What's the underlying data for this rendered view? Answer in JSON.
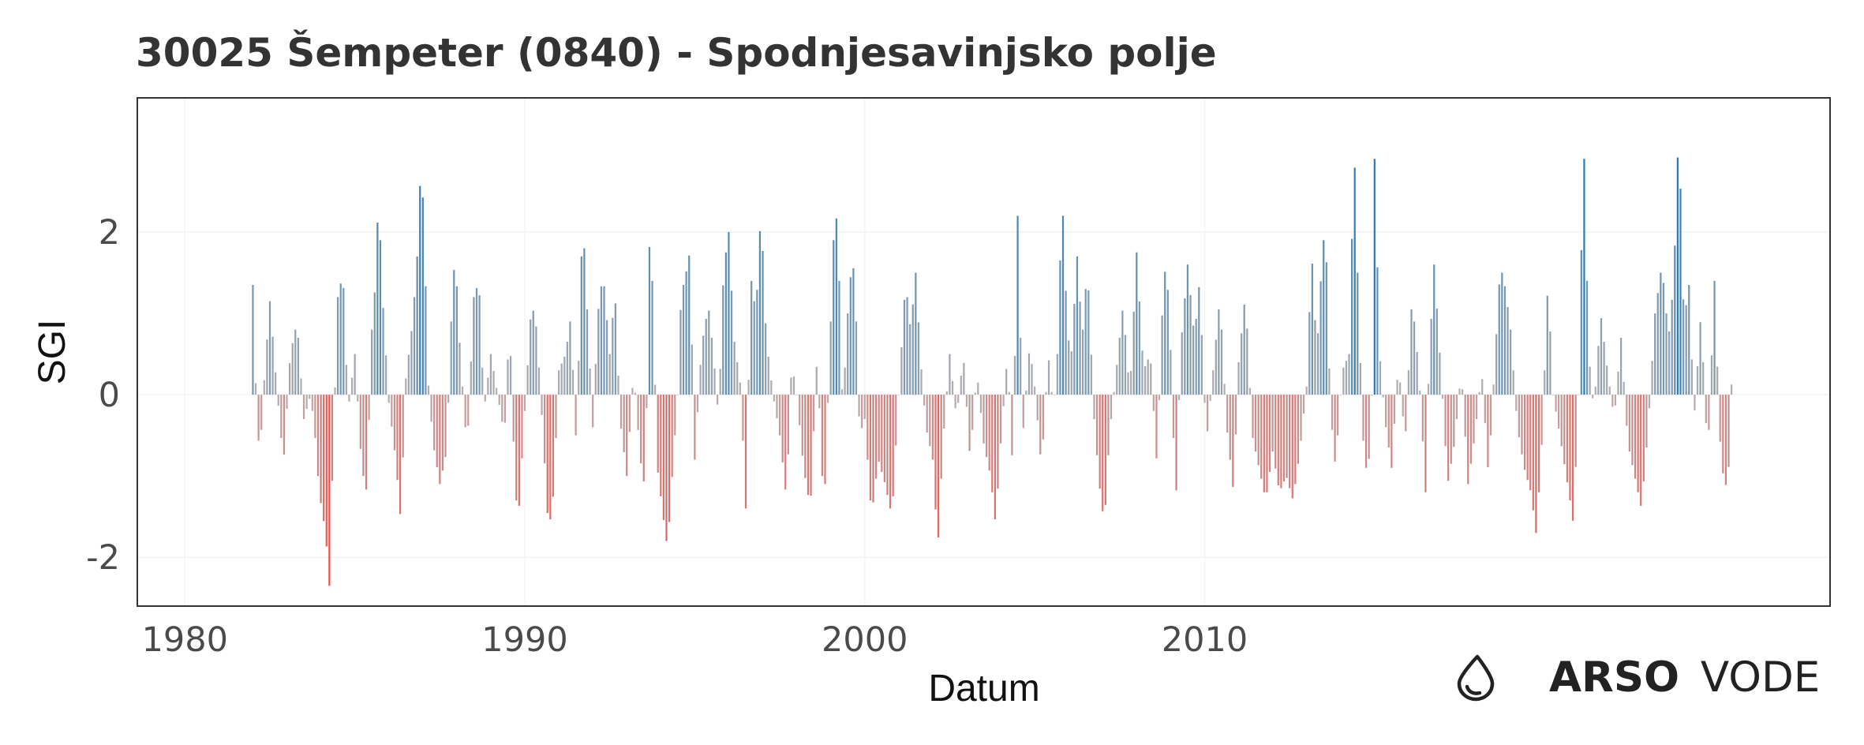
{
  "chart_data": {
    "type": "bar",
    "title": "30025 Šempeter (0840) - Spodnjesavinjsko polje",
    "xlabel": "Datum",
    "ylabel": "SGI",
    "xlim": [
      1978.6,
      2028.4
    ],
    "ylim": [
      -2.6,
      3.65
    ],
    "x_ticks": [
      {
        "value": 1980,
        "label": "1980"
      },
      {
        "value": 1990,
        "label": "1990"
      },
      {
        "value": 2000,
        "label": "2000"
      },
      {
        "value": 2010,
        "label": "2010"
      }
    ],
    "y_ticks": [
      {
        "value": 2,
        "label": "2"
      },
      {
        "value": 0,
        "label": "0"
      },
      {
        "value": -2,
        "label": "-2"
      }
    ],
    "grid": true,
    "colors": {
      "positive": "#1f77b4",
      "negative": "#e8504a",
      "neutral": "#b8b0b0"
    },
    "series": [
      {
        "name": "",
        "keypoints": [
          [
            1982.0,
            1.35
          ],
          [
            1982.1,
            -0.1
          ],
          [
            1982.2,
            -0.8
          ],
          [
            1982.35,
            0.3
          ],
          [
            1982.5,
            1.15
          ],
          [
            1982.7,
            0.1
          ],
          [
            1982.9,
            -0.85
          ],
          [
            1983.1,
            0.5
          ],
          [
            1983.3,
            0.9
          ],
          [
            1983.5,
            -0.3
          ],
          [
            1983.7,
            0.0
          ],
          [
            1983.85,
            -0.6
          ],
          [
            1983.95,
            -1.2
          ],
          [
            1984.1,
            -1.6
          ],
          [
            1984.2,
            -2.0
          ],
          [
            1984.25,
            -2.35
          ],
          [
            1984.35,
            -0.8
          ],
          [
            1984.5,
            1.2
          ],
          [
            1984.65,
            1.5
          ],
          [
            1984.8,
            -0.2
          ],
          [
            1985.0,
            0.5
          ],
          [
            1985.2,
            -0.9
          ],
          [
            1985.35,
            -1.2
          ],
          [
            1985.5,
            0.8
          ],
          [
            1985.6,
            1.35
          ],
          [
            1985.7,
            2.5
          ],
          [
            1985.8,
            1.3
          ],
          [
            1986.0,
            -0.1
          ],
          [
            1986.2,
            -0.8
          ],
          [
            1986.35,
            -1.55
          ],
          [
            1986.5,
            0.2
          ],
          [
            1986.7,
            0.9
          ],
          [
            1986.85,
            1.8
          ],
          [
            1986.95,
            2.95
          ],
          [
            1987.05,
            1.9
          ],
          [
            1987.15,
            0.2
          ],
          [
            1987.3,
            -0.6
          ],
          [
            1987.5,
            -1.1
          ],
          [
            1987.7,
            -0.7
          ],
          [
            1987.85,
            1.1
          ],
          [
            1987.95,
            1.75
          ],
          [
            1988.1,
            0.5
          ],
          [
            1988.3,
            -0.7
          ],
          [
            1988.5,
            1.2
          ],
          [
            1988.65,
            1.4
          ],
          [
            1988.8,
            -0.2
          ],
          [
            1989.0,
            0.5
          ],
          [
            1989.2,
            0.0
          ],
          [
            1989.4,
            -0.5
          ],
          [
            1989.55,
            0.9
          ],
          [
            1989.7,
            -1.0
          ],
          [
            1989.8,
            -1.6
          ],
          [
            1990.0,
            -0.2
          ],
          [
            1990.2,
            1.15
          ],
          [
            1990.35,
            0.8
          ],
          [
            1990.55,
            -0.6
          ],
          [
            1990.7,
            -1.7
          ],
          [
            1990.85,
            -1.2
          ],
          [
            1991.0,
            0.3
          ],
          [
            1991.2,
            0.5
          ],
          [
            1991.35,
            0.95
          ],
          [
            1991.5,
            -0.5
          ],
          [
            1991.6,
            0.6
          ],
          [
            1991.7,
            2.25
          ],
          [
            1991.85,
            0.9
          ],
          [
            1992.0,
            -0.4
          ],
          [
            1992.15,
            1.0
          ],
          [
            1992.3,
            1.5
          ],
          [
            1992.5,
            0.5
          ],
          [
            1992.65,
            1.3
          ],
          [
            1992.8,
            -0.3
          ],
          [
            1993.0,
            -1.0
          ],
          [
            1993.2,
            0.3
          ],
          [
            1993.4,
            -0.8
          ],
          [
            1993.55,
            -1.2
          ],
          [
            1993.65,
            1.9
          ],
          [
            1993.75,
            1.4
          ],
          [
            1993.9,
            -0.9
          ],
          [
            1994.1,
            -1.6
          ],
          [
            1994.2,
            -1.9
          ],
          [
            1994.35,
            -0.9
          ],
          [
            1994.5,
            0.0
          ],
          [
            1994.6,
            1.25
          ],
          [
            1994.7,
            1.4
          ],
          [
            1994.85,
            1.75
          ],
          [
            1995.0,
            -0.8
          ],
          [
            1995.2,
            0.6
          ],
          [
            1995.4,
            1.1
          ],
          [
            1995.55,
            0.5
          ],
          [
            1995.7,
            -0.3
          ],
          [
            1995.85,
            1.55
          ],
          [
            1996.0,
            2.0
          ],
          [
            1996.15,
            0.7
          ],
          [
            1996.35,
            0.1
          ],
          [
            1996.5,
            -1.4
          ],
          [
            1996.65,
            1.45
          ],
          [
            1996.8,
            1.0
          ],
          [
            1996.95,
            2.3
          ],
          [
            1997.1,
            0.7
          ],
          [
            1997.3,
            0.0
          ],
          [
            1997.5,
            -0.5
          ],
          [
            1997.7,
            -1.3
          ],
          [
            1997.85,
            0.4
          ],
          [
            1998.0,
            0.0
          ],
          [
            1998.2,
            -0.9
          ],
          [
            1998.4,
            -1.4
          ],
          [
            1998.6,
            0.5
          ],
          [
            1998.8,
            -1.5
          ],
          [
            1998.95,
            0.3
          ],
          [
            1999.1,
            2.1
          ],
          [
            1999.2,
            2.2
          ],
          [
            1999.35,
            -0.2
          ],
          [
            1999.55,
            1.4
          ],
          [
            1999.7,
            1.6
          ],
          [
            1999.85,
            -0.5
          ],
          [
            2000.0,
            -0.3
          ],
          [
            2000.2,
            -1.5
          ],
          [
            2000.4,
            -0.8
          ],
          [
            2000.6,
            -1.1
          ],
          [
            2000.8,
            -1.5
          ],
          [
            2001.0,
            0.0
          ],
          [
            2001.2,
            1.4
          ],
          [
            2001.35,
            0.8
          ],
          [
            2001.5,
            1.5
          ],
          [
            2001.65,
            0.4
          ],
          [
            2001.8,
            -0.4
          ],
          [
            2002.0,
            -0.8
          ],
          [
            2002.15,
            -1.9
          ],
          [
            2002.3,
            -0.6
          ],
          [
            2002.5,
            0.5
          ],
          [
            2002.7,
            -0.3
          ],
          [
            2002.9,
            0.5
          ],
          [
            2003.1,
            -0.8
          ],
          [
            2003.3,
            0.3
          ],
          [
            2003.5,
            -0.6
          ],
          [
            2003.7,
            -1.0
          ],
          [
            2003.85,
            -1.6
          ],
          [
            2004.0,
            -0.6
          ],
          [
            2004.2,
            0.5
          ],
          [
            2004.35,
            -0.9
          ],
          [
            2004.5,
            2.2
          ],
          [
            2004.65,
            -0.5
          ],
          [
            2004.85,
            0.6
          ],
          [
            2005.0,
            0.1
          ],
          [
            2005.2,
            -0.9
          ],
          [
            2005.4,
            0.5
          ],
          [
            2005.55,
            -0.2
          ],
          [
            2005.7,
            0.7
          ],
          [
            2005.8,
            2.6
          ],
          [
            2005.9,
            1.4
          ],
          [
            2006.05,
            0.3
          ],
          [
            2006.25,
            1.7
          ],
          [
            2006.4,
            0.7
          ],
          [
            2006.55,
            1.6
          ],
          [
            2006.75,
            -0.3
          ],
          [
            2006.9,
            -1.1
          ],
          [
            2007.05,
            -1.6
          ],
          [
            2007.2,
            -0.5
          ],
          [
            2007.4,
            0.3
          ],
          [
            2007.6,
            1.1
          ],
          [
            2007.8,
            0.0
          ],
          [
            2008.0,
            1.75
          ],
          [
            2008.2,
            0.3
          ],
          [
            2008.4,
            0.5
          ],
          [
            2008.6,
            -0.9
          ],
          [
            2008.8,
            1.6
          ],
          [
            2008.95,
            1.2
          ],
          [
            2009.15,
            -1.4
          ],
          [
            2009.3,
            0.6
          ],
          [
            2009.5,
            1.6
          ],
          [
            2009.7,
            0.7
          ],
          [
            2009.85,
            1.4
          ],
          [
            2010.05,
            -0.6
          ],
          [
            2010.25,
            0.3
          ],
          [
            2010.45,
            1.2
          ],
          [
            2010.65,
            -0.4
          ],
          [
            2010.85,
            -1.2
          ],
          [
            2011.0,
            0.4
          ],
          [
            2011.2,
            1.25
          ],
          [
            2011.4,
            -0.5
          ],
          [
            2011.6,
            -0.9
          ],
          [
            2011.8,
            -1.3
          ],
          [
            2012.0,
            -0.7
          ],
          [
            2012.2,
            -1.2
          ],
          [
            2012.4,
            -1.0
          ],
          [
            2012.6,
            -1.3
          ],
          [
            2012.8,
            -0.7
          ],
          [
            2013.0,
            0.1
          ],
          [
            2013.15,
            1.75
          ],
          [
            2013.3,
            0.5
          ],
          [
            2013.45,
            1.65
          ],
          [
            2013.55,
            2.15
          ],
          [
            2013.7,
            -0.2
          ],
          [
            2013.85,
            -0.9
          ],
          [
            2014.05,
            0.3
          ],
          [
            2014.25,
            0.5
          ],
          [
            2014.4,
            3.05
          ],
          [
            2014.5,
            1.5
          ],
          [
            2014.65,
            -0.5
          ],
          [
            2014.8,
            -1.1
          ],
          [
            2014.95,
            0.3
          ],
          [
            2015.0,
            2.9
          ],
          [
            2015.15,
            0.5
          ],
          [
            2015.3,
            -0.3
          ],
          [
            2015.5,
            -0.9
          ],
          [
            2015.7,
            0.4
          ],
          [
            2015.9,
            -0.6
          ],
          [
            2016.1,
            1.2
          ],
          [
            2016.3,
            0.3
          ],
          [
            2016.5,
            -1.2
          ],
          [
            2016.6,
            0.4
          ],
          [
            2016.75,
            1.6
          ],
          [
            2016.95,
            0.3
          ],
          [
            2017.15,
            -1.1
          ],
          [
            2017.35,
            -0.6
          ],
          [
            2017.55,
            0.3
          ],
          [
            2017.75,
            -1.1
          ],
          [
            2017.95,
            -0.5
          ],
          [
            2018.15,
            0.3
          ],
          [
            2018.35,
            -1.0
          ],
          [
            2018.55,
            0.5
          ],
          [
            2018.7,
            1.6
          ],
          [
            2018.85,
            1.3
          ],
          [
            2019.0,
            0.8
          ],
          [
            2019.2,
            -0.4
          ],
          [
            2019.4,
            -0.9
          ],
          [
            2019.6,
            -1.2
          ],
          [
            2019.75,
            -1.7
          ],
          [
            2019.9,
            -0.8
          ],
          [
            2020.1,
            1.4
          ],
          [
            2020.25,
            0.0
          ],
          [
            2020.45,
            -0.5
          ],
          [
            2020.6,
            -0.9
          ],
          [
            2020.75,
            -1.3
          ],
          [
            2020.85,
            -1.6
          ],
          [
            2021.0,
            0.0
          ],
          [
            2021.15,
            3.2
          ],
          [
            2021.3,
            0.5
          ],
          [
            2021.45,
            -0.2
          ],
          [
            2021.65,
            1.0
          ],
          [
            2021.85,
            0.3
          ],
          [
            2022.05,
            -0.3
          ],
          [
            2022.25,
            0.7
          ],
          [
            2022.45,
            -0.6
          ],
          [
            2022.65,
            -1.0
          ],
          [
            2022.85,
            -1.4
          ],
          [
            2023.05,
            -0.4
          ],
          [
            2023.25,
            1.0
          ],
          [
            2023.45,
            1.6
          ],
          [
            2023.65,
            0.7
          ],
          [
            2023.8,
            1.4
          ],
          [
            2023.95,
            3.35
          ],
          [
            2024.1,
            0.9
          ],
          [
            2024.25,
            1.35
          ],
          [
            2024.4,
            -0.3
          ],
          [
            2024.6,
            1.0
          ],
          [
            2024.8,
            -0.8
          ],
          [
            2025.0,
            1.4
          ],
          [
            2025.15,
            -0.5
          ],
          [
            2025.3,
            -1.2
          ],
          [
            2025.45,
            -0.8
          ],
          [
            2025.55,
            1.05
          ]
        ]
      }
    ]
  },
  "logo": {
    "icon": "drop-icon",
    "brand": "ARSO",
    "product": "VODE"
  }
}
